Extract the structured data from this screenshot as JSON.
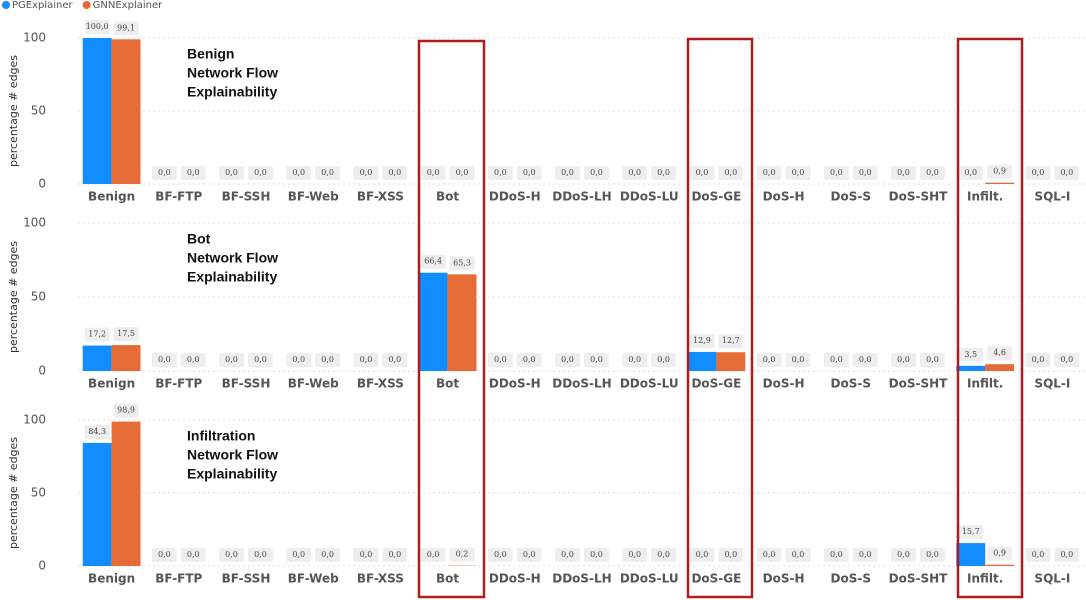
{
  "chart_data": [
    {
      "type": "bar",
      "title_lines": [
        "Benign",
        "Network Flow",
        "Explainability"
      ],
      "y_label": "percentage # edges",
      "categories": [
        "Benign",
        "BF-FTP",
        "BF-SSH",
        "BF-Web",
        "BF-XSS",
        "Bot",
        "DDoS-H",
        "DDoS-LH",
        "DDoS-LU",
        "DoS-GE",
        "DoS-H",
        "DoS-S",
        "DoS-SHT",
        "Infilt.",
        "SQL-I"
      ],
      "series": [
        {
          "name": "PGExplainer",
          "color": "#118dff",
          "values": [
            100,
            0,
            0,
            0,
            0,
            0,
            0,
            0,
            0,
            0,
            0,
            0,
            0,
            0,
            0
          ],
          "value_labels": [
            "100,0",
            "0,0",
            "0,0",
            "0,0",
            "0,0",
            "0,0",
            "0,0",
            "0,0",
            "0,0",
            "0,0",
            "0,0",
            "0,0",
            "0,0",
            "0,0",
            "0,0"
          ]
        },
        {
          "name": "GNNExplainer",
          "color": "#e66c37",
          "values": [
            99.1,
            0,
            0,
            0,
            0,
            0,
            0,
            0,
            0,
            0,
            0,
            0,
            0,
            0.9,
            0
          ],
          "value_labels": [
            "99,1",
            "0,0",
            "0,0",
            "0,0",
            "0,0",
            "0,0",
            "0,0",
            "0,0",
            "0,0",
            "0,0",
            "0,0",
            "0,0",
            "0,0",
            "0,9",
            "0,0"
          ]
        }
      ],
      "ylim": [
        0,
        100
      ],
      "yticks": [
        0,
        50,
        100
      ],
      "grid": true
    },
    {
      "type": "bar",
      "title_lines": [
        "Bot",
        "Network Flow",
        "Explainability"
      ],
      "y_label": "percentage # edges",
      "categories": [
        "Benign",
        "BF-FTP",
        "BF-SSH",
        "BF-Web",
        "BF-XSS",
        "Bot",
        "DDoS-H",
        "DDoS-LH",
        "DDoS-LU",
        "DoS-GE",
        "DoS-H",
        "DoS-S",
        "DoS-SHT",
        "Infilt.",
        "SQL-I"
      ],
      "series": [
        {
          "color": "#118dff",
          "values": [
            17.2,
            0,
            0,
            0,
            0,
            66.4,
            0,
            0,
            0,
            12.9,
            0,
            0,
            0,
            3.5,
            0
          ],
          "value_labels": [
            "17,2",
            "0,0",
            "0,0",
            "0,0",
            "0,0",
            "66,4",
            "0,0",
            "0,0",
            "0,0",
            "12,9",
            "0,0",
            "0,0",
            "0,0",
            "3,5",
            "0,0"
          ]
        },
        {
          "color": "#e66c37",
          "values": [
            17.5,
            0,
            0,
            0,
            0,
            65.3,
            0,
            0,
            0,
            12.7,
            0,
            0,
            0,
            4.6,
            0
          ],
          "value_labels": [
            "17,5",
            "0,0",
            "0,0",
            "0,0",
            "0,0",
            "65,3",
            "0,0",
            "0,0",
            "0,0",
            "12,7",
            "0,0",
            "0,0",
            "0,0",
            "4,6",
            "0,0"
          ]
        }
      ],
      "ylim": [
        0,
        100
      ],
      "yticks": [
        0,
        50,
        100
      ],
      "grid": true
    },
    {
      "type": "bar",
      "title_lines": [
        "Infiltration",
        "Network Flow",
        "Explainability"
      ],
      "y_label": "percentage # edges",
      "categories": [
        "Benign",
        "BF-FTP",
        "BF-SSH",
        "BF-Web",
        "BF-XSS",
        "Bot",
        "DDoS-H",
        "DDoS-LH",
        "DDoS-LU",
        "DoS-GE",
        "DoS-H",
        "DoS-S",
        "DoS-SHT",
        "Infilt.",
        "SQL-I"
      ],
      "series": [
        {
          "color": "#118dff",
          "values": [
            84.3,
            0,
            0,
            0,
            0,
            0,
            0,
            0,
            0,
            0,
            0,
            0,
            0,
            15.7,
            0
          ],
          "value_labels": [
            "84,3",
            "0,0",
            "0,0",
            "0,0",
            "0,0",
            "0,0",
            "0,0",
            "0,0",
            "0,0",
            "0,0",
            "0,0",
            "0,0",
            "0,0",
            "15,7",
            "0,0"
          ]
        },
        {
          "color": "#e66c37",
          "values": [
            98.9,
            0,
            0,
            0,
            0,
            0.2,
            0,
            0,
            0,
            0,
            0,
            0,
            0,
            0.9,
            0
          ],
          "value_labels": [
            "98,9",
            "0,0",
            "0,0",
            "0,0",
            "0,0",
            "0,2",
            "0,0",
            "0,0",
            "0,0",
            "0,0",
            "0,0",
            "0,0",
            "0,0",
            "0,9",
            "0,0"
          ]
        }
      ],
      "ylim": [
        0,
        100
      ],
      "yticks": [
        0,
        50,
        100
      ],
      "grid": true
    }
  ]
}
